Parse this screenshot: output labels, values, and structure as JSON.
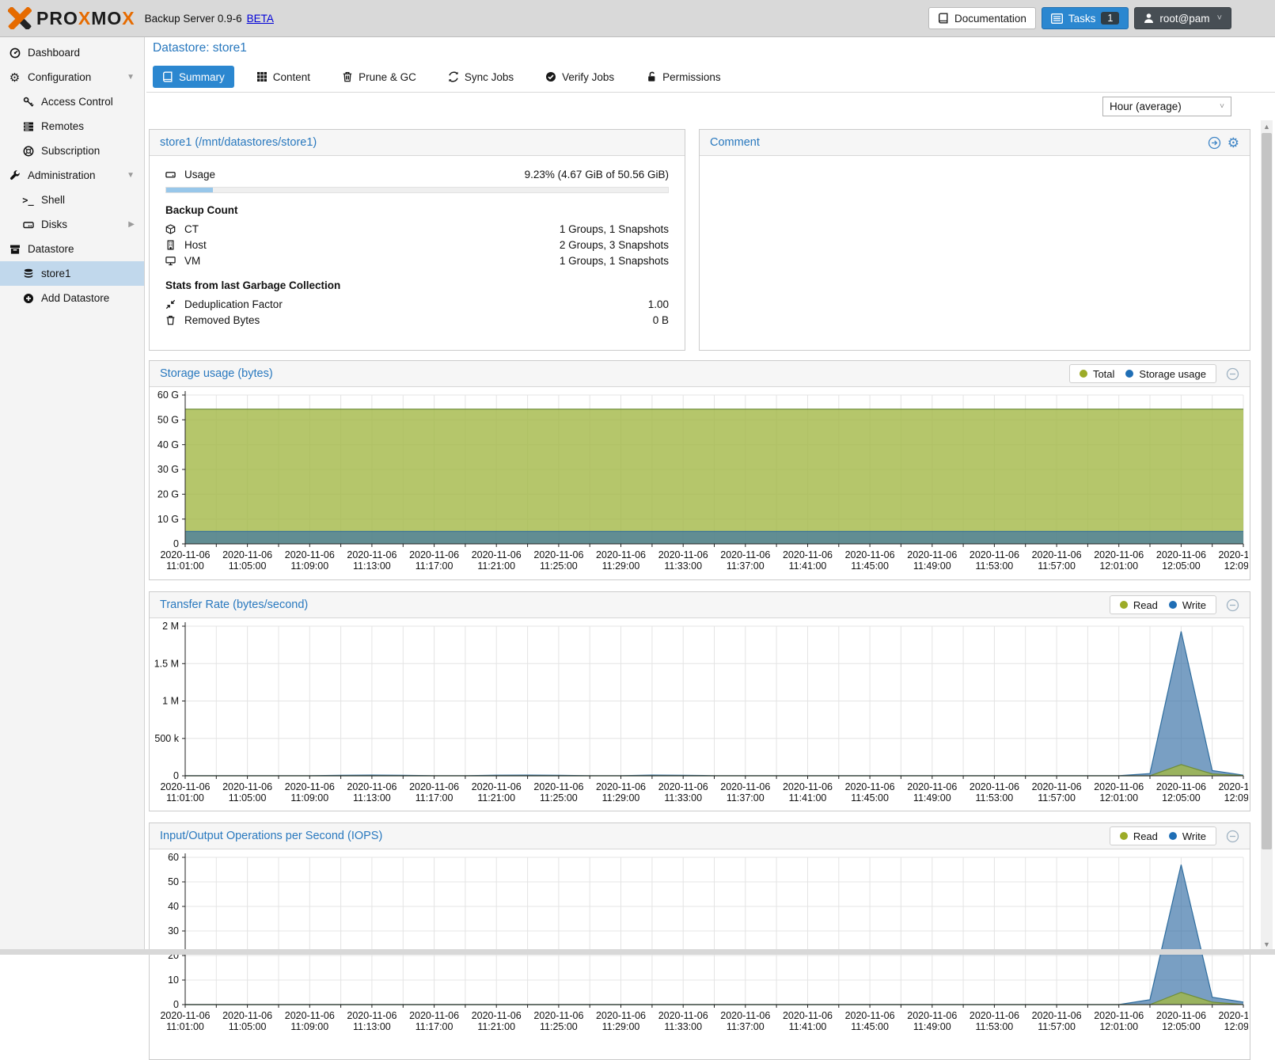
{
  "topbar": {
    "brand_pr": "PR",
    "brand_o1": "O",
    "brand_x1": "X",
    "brand_m": "M",
    "brand_o2": "O",
    "brand_x2": "X",
    "brand": "PROXMOX",
    "subtitle": "Backup Server 0.9-6",
    "beta": "BETA",
    "documentation_label": "Documentation",
    "tasks_label": "Tasks",
    "tasks_badge": "1",
    "user_label": "root@pam"
  },
  "sidebar": {
    "items": [
      {
        "label": "Dashboard",
        "icon": "dashboard-icon"
      },
      {
        "label": "Configuration",
        "icon": "gears-icon",
        "arrow": "down"
      },
      {
        "label": "Access Control",
        "icon": "key-icon",
        "child": true
      },
      {
        "label": "Remotes",
        "icon": "list-rows-icon",
        "child": true
      },
      {
        "label": "Subscription",
        "icon": "life-ring-icon",
        "child": true
      },
      {
        "label": "Administration",
        "icon": "wrench-icon",
        "arrow": "down"
      },
      {
        "label": "Shell",
        "icon": "terminal-icon",
        "child": true
      },
      {
        "label": "Disks",
        "icon": "hdd-icon",
        "child": true,
        "arrow": "right"
      },
      {
        "label": "Datastore",
        "icon": "archive-box-icon"
      },
      {
        "label": "store1",
        "icon": "database-icon",
        "child": true,
        "selected": true
      },
      {
        "label": "Add Datastore",
        "icon": "plus-circle-icon",
        "child": true
      }
    ]
  },
  "page": {
    "title": "Datastore: store1",
    "tabs": [
      {
        "label": "Summary",
        "icon": "book-icon",
        "active": true
      },
      {
        "label": "Content",
        "icon": "grid-icon"
      },
      {
        "label": "Prune & GC",
        "icon": "trash-icon"
      },
      {
        "label": "Sync Jobs",
        "icon": "sync-icon"
      },
      {
        "label": "Verify Jobs",
        "icon": "check-circle-icon"
      },
      {
        "label": "Permissions",
        "icon": "unlock-icon"
      }
    ],
    "range_selector": "Hour (average)"
  },
  "store_panel": {
    "title": "store1 (/mnt/datastores/store1)",
    "usage_label": "Usage",
    "usage_value": "9.23% (4.67 GiB of 50.56 GiB)",
    "usage_pct": 9.23,
    "backup_count_title": "Backup Count",
    "rows": [
      {
        "label": "CT",
        "value": "1 Groups, 1 Snapshots",
        "icon": "cube-icon"
      },
      {
        "label": "Host",
        "value": "2 Groups, 3 Snapshots",
        "icon": "building-icon"
      },
      {
        "label": "VM",
        "value": "1 Groups, 1 Snapshots",
        "icon": "desktop-icon"
      }
    ],
    "gc_title": "Stats from last Garbage Collection",
    "gc_rows": [
      {
        "label": "Deduplication Factor",
        "value": "1.00",
        "icon": "compress-icon"
      },
      {
        "label": "Removed Bytes",
        "value": "0 B",
        "icon": "trash-icon"
      }
    ]
  },
  "comment_panel": {
    "title": "Comment",
    "body": ""
  },
  "colors": {
    "accent_blue": "#2b87d0",
    "title_blue": "#2878be",
    "selected_row": "#c1d8ec",
    "legend_read_total": "#9cab27",
    "legend_write_usage": "#1f6eb5",
    "area_green_line": "#6f8d38",
    "area_green_fill": "rgba(163,184,70,0.8)",
    "area_blue_line": "#2f6d9e",
    "area_blue_fill": "rgba(58,114,167,0.68)",
    "topbar_bg": "#d9d9d9",
    "sidebar_bg": "#f4f4f4"
  },
  "icons": {
    "gear-icon": "⚙",
    "chevron-down-icon": "˅",
    "triangle-down-icon": "▼",
    "triangle-right-icon": "▶",
    "scroll-up-icon": "▲",
    "scroll-down-icon": "▼",
    "terminal-icon": ">_"
  },
  "chart_data": [
    {
      "type": "area",
      "title": "Storage usage (bytes)",
      "legend": [
        "Total",
        "Storage usage"
      ],
      "x_axis": {
        "date": "2020-11-06",
        "start": "11:01",
        "end": "12:09",
        "step_min": 2,
        "tick_min": 2,
        "label_every_min": 4
      },
      "ylim": [
        0,
        60000000000
      ],
      "yticks": [
        {
          "v": 60000000000,
          "label": "60 G"
        },
        {
          "v": 50000000000,
          "label": "50 G"
        },
        {
          "v": 40000000000,
          "label": "40 G"
        },
        {
          "v": 30000000000,
          "label": "30 G"
        },
        {
          "v": 20000000000,
          "label": "20 G"
        },
        {
          "v": 10000000000,
          "label": "10 G"
        },
        {
          "v": 0,
          "label": "0"
        }
      ],
      "series": [
        {
          "name": "Total",
          "color": "#6f8d38",
          "fill": "rgba(163,184,70,0.8)",
          "constant": 54290000000
        },
        {
          "name": "Storage usage",
          "color": "#2f6d9e",
          "fill": "rgba(58,114,167,0.68)",
          "constant": 5010000000
        }
      ],
      "legend_position": "top-right",
      "grid": true
    },
    {
      "type": "area",
      "title": "Transfer Rate (bytes/second)",
      "legend": [
        "Read",
        "Write"
      ],
      "x_axis": {
        "date": "2020-11-06",
        "start": "11:01",
        "end": "12:09",
        "step_min": 2,
        "tick_min": 2,
        "label_every_min": 4
      },
      "ylim": [
        0,
        2000000
      ],
      "yticks": [
        {
          "v": 2000000,
          "label": "2 M"
        },
        {
          "v": 1500000,
          "label": "1.5 M"
        },
        {
          "v": 1000000,
          "label": "1 M"
        },
        {
          "v": 500000,
          "label": "500 k"
        },
        {
          "v": 0,
          "label": "0"
        }
      ],
      "series": [
        {
          "name": "Write",
          "color": "#2f6d9e",
          "fill": "rgba(58,114,167,0.68)",
          "values": [
            1500,
            900,
            800,
            900,
            1500,
            6000,
            9000,
            7000,
            2500,
            1500,
            8000,
            10000,
            7000,
            2500,
            1500,
            9000,
            7000,
            2000,
            1000,
            800,
            800,
            800,
            800,
            800,
            800,
            800,
            800,
            800,
            800,
            800,
            1500,
            30000,
            1930000,
            70000,
            8000
          ]
        },
        {
          "name": "Read",
          "color": "#6f8d38",
          "fill": "rgba(163,184,70,0.8)",
          "values": [
            0,
            0,
            0,
            0,
            0,
            0,
            0,
            0,
            0,
            0,
            0,
            0,
            0,
            0,
            0,
            0,
            0,
            0,
            0,
            0,
            0,
            0,
            0,
            0,
            0,
            0,
            0,
            0,
            0,
            0,
            0,
            0,
            150000,
            25000,
            3000
          ]
        }
      ],
      "legend_position": "top-right",
      "grid": true
    },
    {
      "type": "area",
      "title": "Input/Output Operations per Second (IOPS)",
      "legend": [
        "Read",
        "Write"
      ],
      "x_axis": {
        "date": "2020-11-06",
        "start": "11:01",
        "end": "12:09",
        "step_min": 2,
        "tick_min": 2,
        "label_every_min": 4
      },
      "ylim": [
        0,
        60
      ],
      "yticks": [
        {
          "v": 60,
          "label": "60"
        },
        {
          "v": 50,
          "label": "50"
        },
        {
          "v": 40,
          "label": "40"
        },
        {
          "v": 30,
          "label": "30"
        },
        {
          "v": 20,
          "label": "20"
        },
        {
          "v": 10,
          "label": "10"
        },
        {
          "v": 0,
          "label": "0"
        }
      ],
      "series": [
        {
          "name": "Write",
          "color": "#2f6d9e",
          "fill": "rgba(58,114,167,0.68)",
          "values": [
            0,
            0,
            0,
            0,
            0,
            0,
            0,
            0,
            0,
            0,
            0,
            0,
            0,
            0,
            0,
            0,
            0,
            0,
            0,
            0,
            0,
            0,
            0,
            0,
            0,
            0,
            0,
            0,
            0,
            0,
            0,
            2,
            57,
            3,
            1
          ]
        },
        {
          "name": "Read",
          "color": "#6f8d38",
          "fill": "rgba(163,184,70,0.8)",
          "values": [
            0,
            0,
            0,
            0,
            0,
            0,
            0,
            0,
            0,
            0,
            0,
            0,
            0,
            0,
            0,
            0,
            0,
            0,
            0,
            0,
            0,
            0,
            0,
            0,
            0,
            0,
            0,
            0,
            0,
            0,
            0,
            0,
            5,
            1,
            0
          ]
        }
      ],
      "legend_position": "top-right",
      "grid": true
    }
  ]
}
